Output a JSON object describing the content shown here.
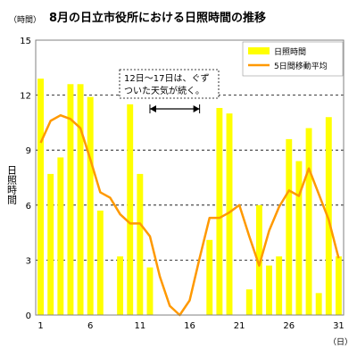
{
  "chart_data": {
    "type": "bar",
    "title": "8月の日立市役所における日照時間の推移",
    "y_unit_label": "（時間）",
    "x_unit_label": "（日）",
    "ylabel": "日照時間",
    "ylim": [
      0,
      15
    ],
    "yticks": [
      0,
      3,
      6,
      9,
      12,
      15
    ],
    "xlim": [
      1,
      31
    ],
    "xticks": [
      1,
      6,
      11,
      16,
      21,
      26,
      31
    ],
    "grid": "horizontal dashed",
    "legend_position": "top-right",
    "x": [
      1,
      2,
      3,
      4,
      5,
      6,
      7,
      8,
      9,
      10,
      11,
      12,
      13,
      14,
      15,
      16,
      17,
      18,
      19,
      20,
      21,
      22,
      23,
      24,
      25,
      26,
      27,
      28,
      29,
      30,
      31
    ],
    "series": [
      {
        "name": "日照時間",
        "type": "bar",
        "color": "#ffff00",
        "values": [
          12.9,
          7.7,
          8.6,
          12.6,
          12.6,
          11.9,
          5.7,
          0,
          3.2,
          11.5,
          7.7,
          2.6,
          0,
          0,
          0,
          0,
          0,
          4.1,
          11.3,
          11.0,
          0,
          1.4,
          6.0,
          2.7,
          3.2,
          9.6,
          8.4,
          10.2,
          1.2,
          10.8,
          3.2
        ]
      },
      {
        "name": "5日間移動平均",
        "type": "line",
        "color": "#ff9900",
        "values": [
          9.4,
          10.6,
          10.9,
          10.7,
          10.2,
          8.5,
          6.7,
          6.4,
          5.5,
          5.0,
          5.0,
          4.3,
          2.1,
          0.5,
          0.0,
          0.8,
          3.1,
          5.3,
          5.3,
          5.6,
          6.0,
          4.3,
          2.7,
          4.6,
          5.9,
          6.8,
          6.5,
          8.0,
          6.6,
          5.2,
          3.1
        ]
      }
    ],
    "annotation": {
      "lines": [
        "12日～17日は、ぐず",
        "ついた天気が続く。"
      ],
      "range": [
        12,
        17
      ]
    }
  }
}
